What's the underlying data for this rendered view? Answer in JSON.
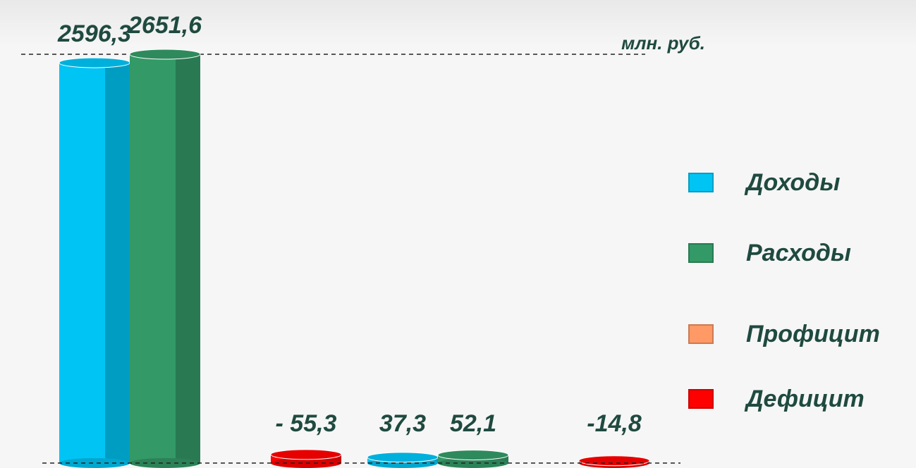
{
  "chart_data": {
    "type": "bar",
    "unit_label": "млн. руб.",
    "categories": [
      null,
      null
    ],
    "series": [
      {
        "name": "Доходы",
        "color": "#00c4f4",
        "values": [
          2596.3,
          37.3
        ],
        "value_labels": [
          "2596,3",
          "37,3"
        ]
      },
      {
        "name": "Расходы",
        "color": "#339966",
        "values": [
          2651.6,
          52.1
        ],
        "value_labels": [
          "2651,6",
          "52,1"
        ]
      },
      {
        "name": "Профицит",
        "color": "#ff9966",
        "values": [
          null,
          null
        ]
      },
      {
        "name": "Дефицит",
        "color": "#ff0000",
        "values": [
          -55.3,
          -14.8
        ],
        "value_labels": [
          "- 55,3",
          "-14,8"
        ]
      }
    ],
    "legend": "right"
  }
}
